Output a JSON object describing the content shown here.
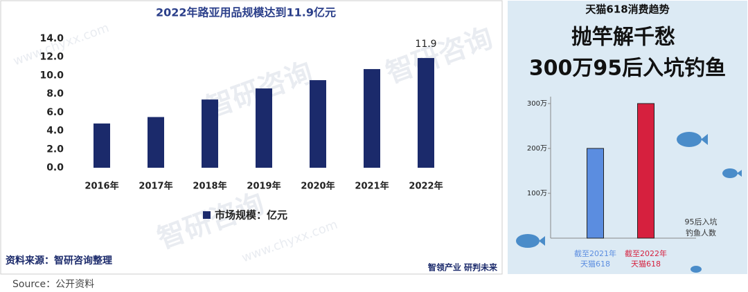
{
  "chart_data": [
    {
      "type": "bar",
      "title": "2022年路亚用品规模达到11.9亿元",
      "categories": [
        "2016年",
        "2017年",
        "2018年",
        "2019年",
        "2020年",
        "2021年",
        "2022年"
      ],
      "series": [
        {
          "name": "市场规模：亿元",
          "color": "#1b2a6b",
          "values": [
            4.8,
            5.5,
            7.4,
            8.6,
            9.5,
            10.7,
            11.9
          ],
          "value_labels": [
            null,
            null,
            null,
            null,
            null,
            null,
            "11.9"
          ]
        }
      ],
      "ylim": [
        0,
        14
      ],
      "yticks": [
        {
          "value": 0,
          "label": "0.0"
        },
        {
          "value": 2,
          "label": "2.0"
        },
        {
          "value": 4,
          "label": "4.0"
        },
        {
          "value": 6,
          "label": "6.0"
        },
        {
          "value": 8,
          "label": "8.0"
        },
        {
          "value": 10,
          "label": "10.0"
        },
        {
          "value": 12,
          "label": "12.0"
        },
        {
          "value": 14,
          "label": "14.0"
        }
      ],
      "source": "资料来源：智研咨询整理",
      "watermark": [
        "智研咨询",
        "www.chyxx.com"
      ],
      "slogan": "智领产业 研判未来"
    },
    {
      "type": "bar",
      "title": "天猫618消费趋势",
      "headline": [
        "抛竿解千愁",
        "300万95后入坑钓鱼"
      ],
      "categories": [
        [
          "截至2021年",
          "天猫618"
        ],
        [
          "截至2022年",
          "天猫618"
        ]
      ],
      "colors": [
        "#5b8de0",
        "#d6203e"
      ],
      "values": [
        200,
        300
      ],
      "ylim": [
        0,
        300
      ],
      "yticks": [
        {
          "value": 100,
          "label": "100万"
        },
        {
          "value": 200,
          "label": "200万"
        },
        {
          "value": 300,
          "label": "300万"
        }
      ],
      "y_label": [
        "95后入坑",
        "钓鱼人数"
      ]
    }
  ],
  "caption": "Source：公开资料"
}
